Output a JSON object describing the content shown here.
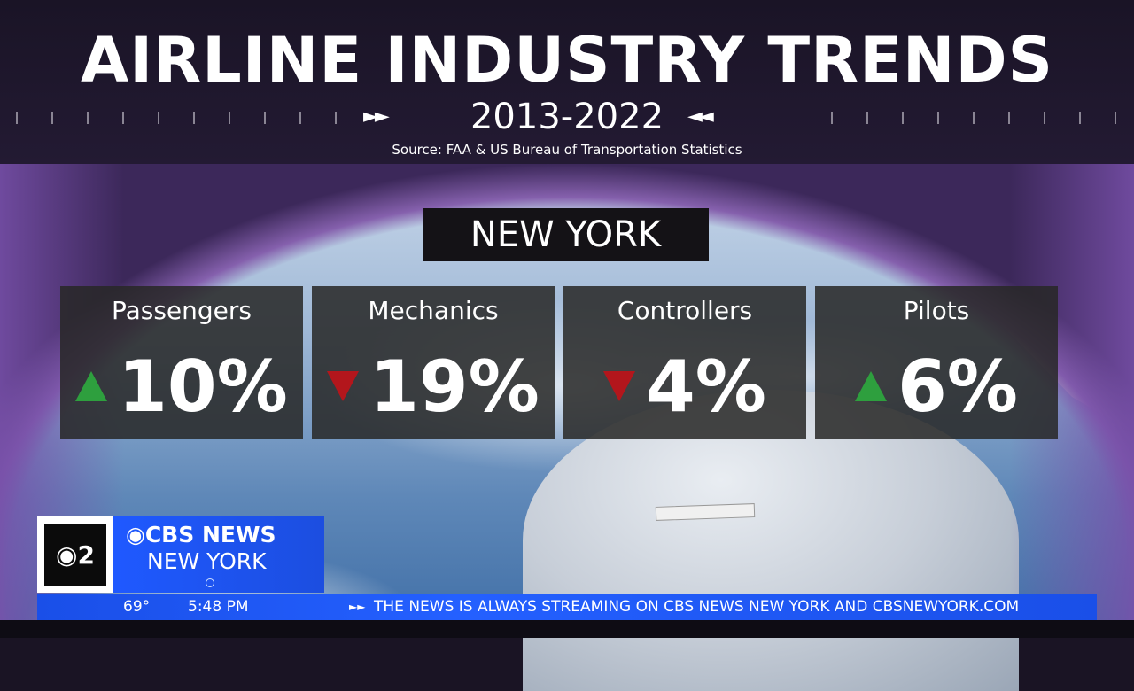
{
  "header": {
    "title": "AIRLINE INDUSTRY TRENDS",
    "years": "2013-2022",
    "arrows_left": "►►",
    "arrows_right": "◄◄",
    "source": "Source:  FAA & US Bureau of Transportation Statistics"
  },
  "location": "NEW YORK",
  "stats": [
    {
      "label": "Passengers",
      "value": "10%",
      "direction": "up"
    },
    {
      "label": "Mechanics",
      "value": "19%",
      "direction": "down"
    },
    {
      "label": "Controllers",
      "value": "4%",
      "direction": "down"
    },
    {
      "label": "Pilots",
      "value": "6%",
      "direction": "up"
    }
  ],
  "colors": {
    "up": "#2e9f3e",
    "down": "#b3161c",
    "brand_blue": "#1f59ff",
    "header_bg": "#1a1426"
  },
  "bug": {
    "logo_text": "2",
    "brand": "CBS NEWS",
    "city": "NEW YORK"
  },
  "ticker": {
    "temperature": "69°",
    "time": "5:48 PM",
    "crawl_icon": "play-forward-icon",
    "crawl_text": "THE NEWS IS ALWAYS STREAMING ON CBS NEWS NEW YORK AND CBSNEWYORK.COM"
  }
}
